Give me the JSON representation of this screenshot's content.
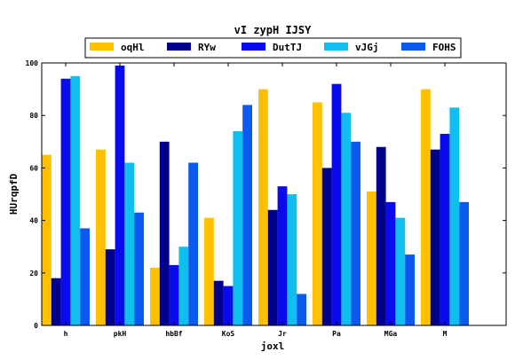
{
  "chart_data": {
    "type": "bar",
    "title": "vI zypH IJSY",
    "xlabel": "joxl",
    "ylabel": "HUrqpfD",
    "categories": [
      "h",
      "pkH",
      "hbBf",
      "KoS",
      "Jr",
      "Pa",
      "MGa",
      "M"
    ],
    "ylim": [
      0,
      100
    ],
    "yticks": [
      0,
      20,
      40,
      60,
      80,
      100
    ],
    "grid": false,
    "legend_position": "top-center",
    "series": [
      {
        "name": "oqHl",
        "color": "#ffc000",
        "values": [
          65,
          67,
          22,
          41,
          90,
          85,
          51,
          90
        ]
      },
      {
        "name": "RYw",
        "color": "#00008b",
        "values": [
          18,
          29,
          70,
          17,
          44,
          60,
          68,
          67
        ]
      },
      {
        "name": "DutTJ",
        "color": "#0a0aee",
        "values": [
          94,
          99,
          23,
          15,
          53,
          92,
          47,
          73
        ]
      },
      {
        "name": "vJGj",
        "color": "#10bff0",
        "values": [
          95,
          62,
          30,
          74,
          50,
          81,
          41,
          83
        ]
      },
      {
        "name": "FOHS",
        "color": "#0a5aef",
        "values": [
          37,
          43,
          62,
          84,
          12,
          70,
          27,
          47
        ]
      }
    ]
  }
}
